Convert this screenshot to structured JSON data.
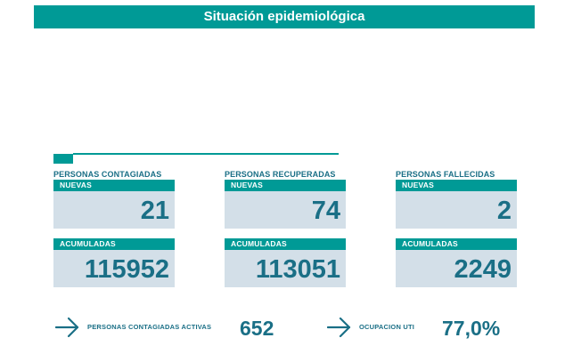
{
  "header": {
    "title": "Situación epidemiológica"
  },
  "groups": [
    {
      "title": "PERSONAS CONTAGIADAS",
      "nuevas_label": "NUEVAS",
      "nuevas_value": "21",
      "acumuladas_label": "ACUMULADAS",
      "acumuladas_value": "115952"
    },
    {
      "title": "PERSONAS RECUPERADAS",
      "nuevas_label": "NUEVAS",
      "nuevas_value": "74",
      "acumuladas_label": "ACUMULADAS",
      "acumuladas_value": "113051"
    },
    {
      "title": "PERSONAS FALLECIDAS",
      "nuevas_label": "NUEVAS",
      "nuevas_value": "2",
      "acumuladas_label": "ACUMULADAS",
      "acumuladas_value": "2249"
    }
  ],
  "stats": {
    "activas_label": "PERSONAS CONTAGIADAS ACTIVAS",
    "activas_value": "652",
    "uti_label": "OCUPACION UTI",
    "uti_value": "77,0%"
  },
  "icons": {
    "arrow": "arrow-right-icon"
  },
  "colors": {
    "accent": "#009a96",
    "text": "#1a6f86",
    "card_background": "#d3dfe8"
  }
}
